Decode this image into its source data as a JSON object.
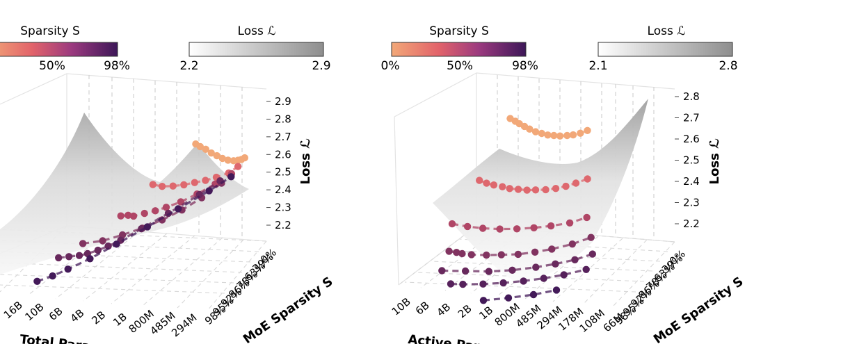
{
  "colors": {
    "sparsity_low": "#f2a878",
    "sparsity_mid": "#d8566b",
    "sparsity_high": "#3d1758",
    "surface": "#bdbdbd",
    "grid": "#d0d0d0"
  },
  "chart_data": [
    {
      "type": "surface3d-scatter",
      "panel": "left",
      "colorbars": [
        {
          "title": "Sparsity S",
          "ticks": [
            "50%",
            "98%"
          ],
          "colormap": "magma-light"
        },
        {
          "title": "Loss ℒ",
          "ticks": [
            "2.2",
            "2.9"
          ],
          "colormap": "gray"
        }
      ],
      "xlabel": "Total Param",
      "ylabel": "MoE Sparsity S",
      "zlabel": "Loss ℒ",
      "xticks": [
        "16B",
        "10B",
        "6B",
        "4B",
        "2B",
        "1B",
        "800M",
        "485M",
        "294M"
      ],
      "yticks": [
        "98%",
        "95%",
        "92%",
        "86%",
        "78%",
        "63%",
        "39%",
        "0%"
      ],
      "zticks": [
        "2.2",
        "2.3",
        "2.4",
        "2.5",
        "2.6",
        "2.7",
        "2.8",
        "2.9"
      ],
      "zlim": [
        2.1,
        2.9
      ],
      "series": [
        {
          "sparsity": 0.0,
          "x": [
            0.54,
            0.58,
            0.63,
            0.68,
            0.73,
            0.78,
            0.83,
            0.88,
            0.92,
            0.95,
            0.98
          ],
          "loss": [
            2.59,
            2.57,
            2.55,
            2.52,
            2.5,
            2.48,
            2.47,
            2.47,
            2.48,
            2.49,
            2.51
          ]
        },
        {
          "sparsity": 0.39,
          "x": [
            0.41,
            0.47,
            0.54,
            0.61,
            0.68,
            0.75,
            0.82,
            0.9,
            0.96
          ],
          "loss": [
            2.47,
            2.43,
            2.41,
            2.4,
            2.4,
            2.4,
            2.41,
            2.43,
            2.48
          ]
        },
        {
          "sparsity": 0.63,
          "x": [
            0.33,
            0.37,
            0.4,
            0.46,
            0.52,
            0.58,
            0.66,
            0.75,
            0.85,
            0.94
          ],
          "loss": [
            2.37,
            2.35,
            2.32,
            2.31,
            2.3,
            2.3,
            2.31,
            2.34,
            2.39,
            2.45
          ]
        },
        {
          "sparsity": 0.78,
          "x": [
            0.2,
            0.3,
            0.4,
            0.5,
            0.6,
            0.7,
            0.8,
            0.9
          ],
          "loss": [
            2.3,
            2.24,
            2.22,
            2.21,
            2.22,
            2.25,
            2.31,
            2.4
          ]
        },
        {
          "sparsity": 0.86,
          "x": [
            0.12,
            0.17,
            0.22,
            0.26,
            0.31,
            0.36,
            0.42,
            0.52,
            0.65,
            0.8,
            0.9
          ],
          "loss": [
            2.3,
            2.26,
            2.22,
            2.2,
            2.19,
            2.19,
            2.2,
            2.24,
            2.3,
            2.38,
            2.45
          ]
        },
        {
          "sparsity": 0.98,
          "x": [
            0.08,
            0.15,
            0.22,
            0.32,
            0.44,
            0.58,
            0.72,
            0.86,
            0.96
          ],
          "loss": [
            2.2,
            2.18,
            2.18,
            2.19,
            2.23,
            2.28,
            2.34,
            2.4,
            2.46
          ]
        }
      ]
    },
    {
      "type": "surface3d-scatter",
      "panel": "right",
      "colorbars": [
        {
          "title": "Sparsity S",
          "ticks": [
            "0%",
            "50%",
            "98%"
          ],
          "colormap": "magma-light"
        },
        {
          "title": "Loss ℒ",
          "ticks": [
            "2.1",
            "2.8"
          ],
          "colormap": "gray"
        }
      ],
      "xlabel": "Active Param",
      "ylabel": "MoE Sparsity S",
      "zlabel": "Loss ℒ",
      "xticks": [
        "10B",
        "6B",
        "4B",
        "2B",
        "1B",
        "800M",
        "485M",
        "294M",
        "178M",
        "108M",
        "66M"
      ],
      "yticks": [
        "98%",
        "95%",
        "92%",
        "86%",
        "78%",
        "63%",
        "39%",
        "0%"
      ],
      "zticks": [
        "2.2",
        "2.3",
        "2.4",
        "2.5",
        "2.6",
        "2.7",
        "2.8"
      ],
      "zlim": [
        2.1,
        2.85
      ],
      "series": [
        {
          "sparsity": 0.0,
          "x": [
            0.12,
            0.17,
            0.21,
            0.26,
            0.31,
            0.37,
            0.43,
            0.49,
            0.55,
            0.61,
            0.68,
            0.74,
            0.81,
            0.88
          ],
          "loss": [
            2.63,
            2.61,
            2.59,
            2.57,
            2.55,
            2.53,
            2.52,
            2.51,
            2.51,
            2.51,
            2.52,
            2.53,
            2.55,
            2.58
          ]
        },
        {
          "sparsity": 0.39,
          "x": [
            0.17,
            0.22,
            0.27,
            0.33,
            0.38,
            0.44,
            0.5,
            0.56,
            0.63,
            0.7,
            0.77,
            0.84,
            0.92
          ],
          "loss": [
            2.59,
            2.56,
            2.54,
            2.52,
            2.5,
            2.49,
            2.48,
            2.48,
            2.48,
            2.49,
            2.51,
            2.54,
            2.58
          ]
        },
        {
          "sparsity": 0.63,
          "x": [
            0.14,
            0.23,
            0.32,
            0.42,
            0.52,
            0.62,
            0.72,
            0.83,
            0.93
          ],
          "loss": [
            2.5,
            2.46,
            2.43,
            2.41,
            2.4,
            2.4,
            2.41,
            2.43,
            2.48
          ]
        },
        {
          "sparsity": 0.78,
          "x": [
            0.2,
            0.24,
            0.27,
            0.32,
            0.4,
            0.48,
            0.57,
            0.66,
            0.75,
            0.86,
            0.96
          ],
          "loss": [
            2.42,
            2.4,
            2.38,
            2.36,
            2.34,
            2.33,
            2.32,
            2.33,
            2.35,
            2.39,
            2.45
          ]
        },
        {
          "sparsity": 0.86,
          "x": [
            0.2,
            0.32,
            0.44,
            0.56,
            0.68,
            0.78,
            0.88,
            0.97
          ],
          "loss": [
            2.32,
            2.29,
            2.26,
            2.25,
            2.26,
            2.28,
            2.31,
            2.36
          ]
        },
        {
          "sparsity": 0.92,
          "x": [
            0.27,
            0.33,
            0.43,
            0.53,
            0.63,
            0.73,
            0.83,
            0.94
          ],
          "loss": [
            2.24,
            2.22,
            2.2,
            2.19,
            2.19,
            2.2,
            2.22,
            2.26
          ]
        },
        {
          "sparsity": 0.98,
          "x": [
            0.45,
            0.57,
            0.69,
            0.8
          ],
          "loss": [
            2.08,
            2.08,
            2.09,
            2.12
          ]
        }
      ]
    }
  ]
}
